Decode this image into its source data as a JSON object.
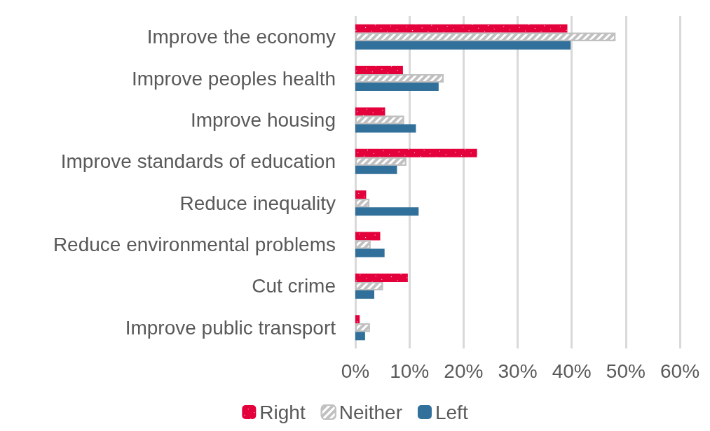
{
  "chart_data": {
    "type": "bar",
    "orientation": "horizontal",
    "categories": [
      "Improve the economy",
      "Improve peoples health",
      "Improve housing",
      "Improve standards of education",
      "Reduce inequality",
      "Reduce environmental problems",
      "Cut crime",
      "Improve public transport"
    ],
    "series": [
      {
        "name": "Right",
        "color": "#e4003b",
        "values": [
          39.2,
          8.8,
          5.5,
          22.5,
          2.0,
          4.6,
          9.7,
          0.8
        ]
      },
      {
        "name": "Neither",
        "color": "#c0c0c0",
        "values": [
          48.1,
          16.3,
          9.0,
          9.4,
          2.6,
          2.8,
          5.1,
          2.7
        ]
      },
      {
        "name": "Left",
        "color": "#31709a",
        "values": [
          39.8,
          15.4,
          11.2,
          7.7,
          11.7,
          5.4,
          3.5,
          1.8
        ]
      }
    ],
    "xlim": [
      0,
      60
    ],
    "xticks": [
      {
        "value": 0,
        "label": "0%"
      },
      {
        "value": 10,
        "label": "10%"
      },
      {
        "value": 20,
        "label": "20%"
      },
      {
        "value": 30,
        "label": "30%"
      },
      {
        "value": 40,
        "label": "40%"
      },
      {
        "value": 50,
        "label": "50%"
      },
      {
        "value": 60,
        "label": "60%"
      }
    ],
    "grid": "x",
    "legend": "bottom"
  }
}
